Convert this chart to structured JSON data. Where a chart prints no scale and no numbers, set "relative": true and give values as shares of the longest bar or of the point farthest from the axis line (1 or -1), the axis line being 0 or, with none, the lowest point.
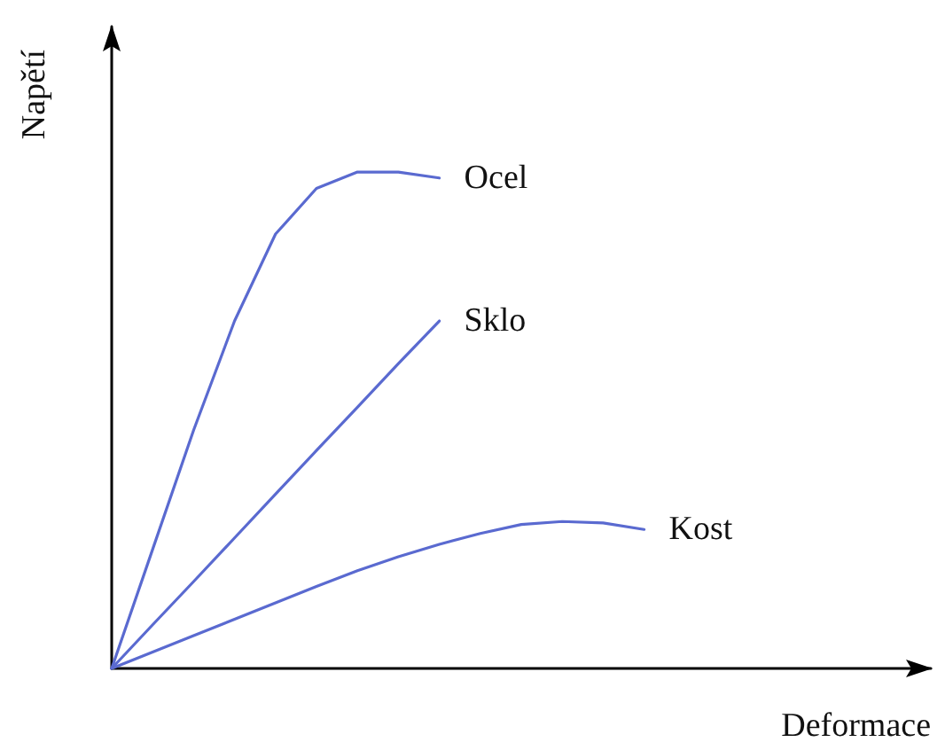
{
  "chart_data": {
    "type": "line",
    "relative": true,
    "xlabel": "Deformace",
    "ylabel": "Napětí",
    "legend": false,
    "grid": false,
    "marker": "none",
    "line_style": "solid",
    "categories": [
      null,
      null,
      null,
      null,
      null,
      null,
      null,
      null,
      null,
      null,
      null,
      null,
      null,
      null,
      null,
      null,
      null,
      null,
      null,
      null,
      null
    ],
    "series": [
      {
        "name": "Ocel",
        "color": "#5a6ad0",
        "values": [
          0,
          0.24,
          0.48,
          0.7,
          0.875,
          0.967,
          1.0,
          1.0,
          0.988,
          null,
          null,
          null,
          null,
          null,
          null,
          null,
          null,
          null,
          null,
          null,
          null
        ]
      },
      {
        "name": "Sklo",
        "color": "#5a6ad0",
        "values": [
          0,
          0.088,
          0.175,
          0.263,
          0.351,
          0.439,
          0.526,
          0.614,
          0.7,
          null,
          null,
          null,
          null,
          null,
          null,
          null,
          null,
          null,
          null,
          null,
          null
        ]
      },
      {
        "name": "Kost",
        "color": "#5a6ad0",
        "values": [
          0,
          0.033,
          0.066,
          0.099,
          0.132,
          0.165,
          0.197,
          0.225,
          0.25,
          0.272,
          0.29,
          0.296,
          0.293,
          0.28,
          null,
          null,
          null,
          null,
          null,
          null,
          null
        ]
      }
    ]
  }
}
